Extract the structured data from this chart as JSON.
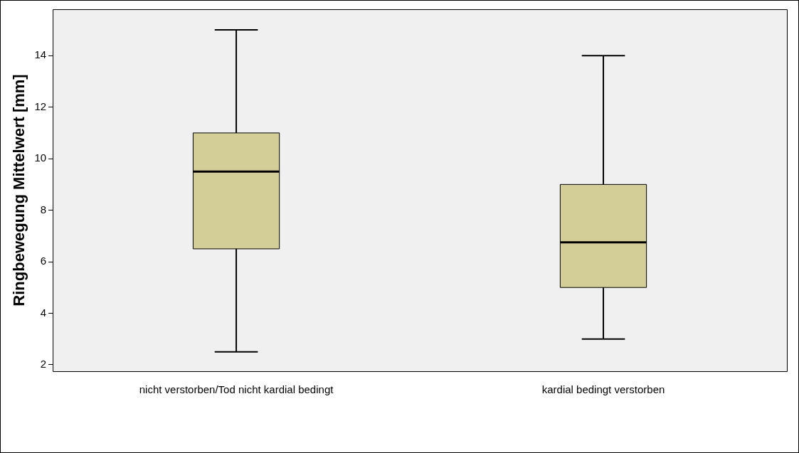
{
  "chart_data": {
    "type": "box",
    "ylabel": "Ringbewegung Mittelwert [mm]",
    "categories": [
      "nicht verstorben/Tod nicht kardial bedingt",
      "kardial bedingt verstorben"
    ],
    "color": "#d3ce97",
    "boxes": [
      {
        "low": 2.5,
        "q1": 6.5,
        "median": 9.5,
        "q3": 11,
        "high": 15
      },
      {
        "low": 3,
        "q1": 5,
        "median": 6.75,
        "q3": 9,
        "high": 14
      }
    ],
    "ylim": [
      1.75,
      15.8
    ],
    "yticks": [
      2,
      4,
      6,
      8,
      10,
      12,
      14
    ],
    "grid": false,
    "legend": false
  }
}
